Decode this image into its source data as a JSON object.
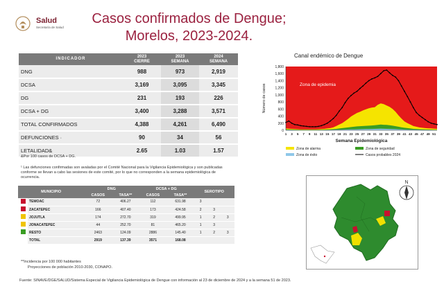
{
  "header": {
    "org_name": "Salud",
    "org_sub": "Secretaría de Salud",
    "title_line1": "Casos confirmados de Dengue;",
    "title_line2": "Morelos, 2023-2024."
  },
  "indicators": {
    "headers": {
      "indicator": "INDICADOR",
      "col1": "2023\nCIERRE",
      "col2": "2023\nSEMANA",
      "col3": "2024\nSEMANA"
    },
    "rows": [
      {
        "label": "DNG",
        "v1": "988",
        "v2": "973",
        "v3": "2,919"
      },
      {
        "label": "DCSA",
        "v1": "3,169",
        "v2": "3,095",
        "v3": "3,345"
      },
      {
        "label": "DG",
        "v1": "231",
        "v2": "193",
        "v3": "226"
      },
      {
        "label": "DCSA + DG",
        "v1": "3,400",
        "v2": "3,288",
        "v3": "3,571"
      },
      {
        "label": "TOTAL CONFIRMADOS",
        "v1": "4,388",
        "v2": "4,261",
        "v3": "6,490"
      },
      {
        "label": "DEFUNCIONES ·",
        "v1": "90",
        "v2": "34",
        "v3": "56"
      },
      {
        "label": "LETALIDAD&",
        "v1": "2.65",
        "v2": "1.03",
        "v3": "1.57"
      }
    ]
  },
  "notes": {
    "n1": "&Por 100 casos de DCSA + DG.",
    "n2": "¹ Las defunciones confirmadas son avaladas por el Comité Nacional para la Vigilancia Epidemiológica y son publicadas conforme se llevan a cabo las sesiones de este comité, por lo que no corresponden a la semana epidemiológica de ocurrencia.",
    "n3": "**Incidencia por 100 000 habitantes",
    "n4": "Proyecciones de población 2010-2030, CONAPO."
  },
  "municipalities": {
    "headers": {
      "municipio": "MUNICIPIO",
      "dng": "DNG",
      "dcsa": "DCSA + DG",
      "serotipo": "SEROTIPO",
      "casos": "CASOS",
      "tasa": "TASA**"
    },
    "rows": [
      {
        "color": "#c8102e",
        "name": "TEMOAC",
        "c1": "72",
        "t1": "406.27",
        "c2": "112",
        "t2": "631.98",
        "s1": "3",
        "s2": "",
        "s3": ""
      },
      {
        "color": "#c8102e",
        "name": "ZACATEPEC",
        "c1": "166",
        "t1": "407.40",
        "c2": "173",
        "t2": "424.58",
        "s1": "2",
        "s2": "3",
        "s3": ""
      },
      {
        "color": "#f0c400",
        "name": "JOJUTLA",
        "c1": "174",
        "t1": "272.70",
        "c2": "319",
        "t2": "499.95",
        "s1": "1",
        "s2": "2",
        "s3": "3"
      },
      {
        "color": "#f0c400",
        "name": "JONACATEPEC",
        "c1": "44",
        "t1": "252.70",
        "c2": "81",
        "t2": "465.20",
        "s1": "1",
        "s2": "3",
        "s3": ""
      },
      {
        "color": "#3a9d23",
        "name": "RESTO",
        "c1": "2463",
        "t1": "124.09",
        "c2": "2886",
        "t2": "145.40",
        "s1": "1",
        "s2": "2",
        "s3": "3"
      },
      {
        "color": "",
        "name": "TOTAL",
        "c1": "2919",
        "t1": "137.39",
        "c2": "3571",
        "t2": "168.08",
        "s1": "",
        "s2": "",
        "s3": ""
      }
    ]
  },
  "chart_data": {
    "type": "area",
    "title": "Canal endémico de Dengue",
    "annotation": "Zona de epidemia",
    "xlabel": "Semana Epidemiológica",
    "ylabel": "Número de casos",
    "ylim": [
      0,
      1800
    ],
    "yticks": [
      "0",
      "200",
      "400",
      "600",
      "800",
      "1,000",
      "1,200",
      "1,400",
      "1,600",
      "1,800"
    ],
    "xticks": [
      "1",
      "3",
      "5",
      "7",
      "9",
      "11",
      "13",
      "15",
      "17",
      "19",
      "21",
      "23",
      "25",
      "27",
      "29",
      "31",
      "33",
      "35",
      "37",
      "39",
      "41",
      "43",
      "45",
      "47",
      "49",
      "51"
    ],
    "legend": [
      {
        "label": "Zona de alarma",
        "color": "#f5e400"
      },
      {
        "label": "Zona de seguridad",
        "color": "#3a9d23"
      },
      {
        "label": "Zona de éxito",
        "color": "#8fc7e8"
      },
      {
        "label": "Casos probables 2024",
        "color": "#000000"
      }
    ],
    "colors": {
      "epidemia": "#e51a1a"
    },
    "series": [
      {
        "name": "Zona de alarma",
        "values": [
          50,
          45,
          40,
          35,
          30,
          25,
          25,
          25,
          25,
          25,
          25,
          30,
          35,
          40,
          50,
          60,
          80,
          120,
          160,
          200,
          260,
          320,
          390,
          440,
          490,
          520,
          560,
          590,
          620,
          640,
          650,
          720,
          760,
          740,
          700,
          660,
          600,
          520,
          420,
          330,
          250,
          200,
          160,
          120,
          100,
          80,
          70,
          60,
          55,
          50,
          45,
          40
        ]
      },
      {
        "name": "Zona de seguridad",
        "values": [
          25,
          22,
          20,
          18,
          15,
          12,
          12,
          12,
          12,
          12,
          12,
          14,
          16,
          18,
          22,
          26,
          32,
          40,
          50,
          60,
          70,
          80,
          90,
          100,
          110,
          115,
          120,
          125,
          130,
          135,
          140,
          150,
          160,
          155,
          150,
          140,
          130,
          115,
          100,
          85,
          70,
          60,
          50,
          40,
          35,
          30,
          25,
          22,
          20,
          18,
          16,
          14
        ]
      },
      {
        "name": "Zona de éxito",
        "values": [
          10,
          9,
          8,
          7,
          6,
          5,
          5,
          5,
          5,
          5,
          5,
          6,
          7,
          8,
          9,
          10,
          12,
          14,
          16,
          18,
          20,
          22,
          24,
          26,
          28,
          30,
          32,
          34,
          36,
          38,
          40,
          42,
          44,
          42,
          40,
          38,
          35,
          32,
          28,
          24,
          20,
          18,
          16,
          14,
          12,
          11,
          10,
          9,
          8,
          8,
          7,
          6
        ]
      },
      {
        "name": "Casos probables 2024",
        "values": [
          220,
          260,
          200,
          160,
          150,
          130,
          120,
          110,
          100,
          100,
          100,
          110,
          130,
          160,
          200,
          260,
          330,
          420,
          540,
          640,
          780,
          900,
          980,
          1050,
          1100,
          1180,
          1250,
          1330,
          1400,
          1450,
          1480,
          1520,
          1600,
          1680,
          1700,
          1620,
          1550,
          1500,
          1400,
          1250,
          1100,
          950,
          800,
          640,
          500,
          420,
          360,
          300,
          240,
          200,
          180,
          160
        ]
      }
    ]
  },
  "map": {
    "north": "N"
  },
  "footer": "Fuente: SINAVE/DGE/SALUD/Sistema Especial de Vigilancia Epidemiológica de Dengue con información al 23 de diciembre de 2024 y a la semana 51 de 2023."
}
